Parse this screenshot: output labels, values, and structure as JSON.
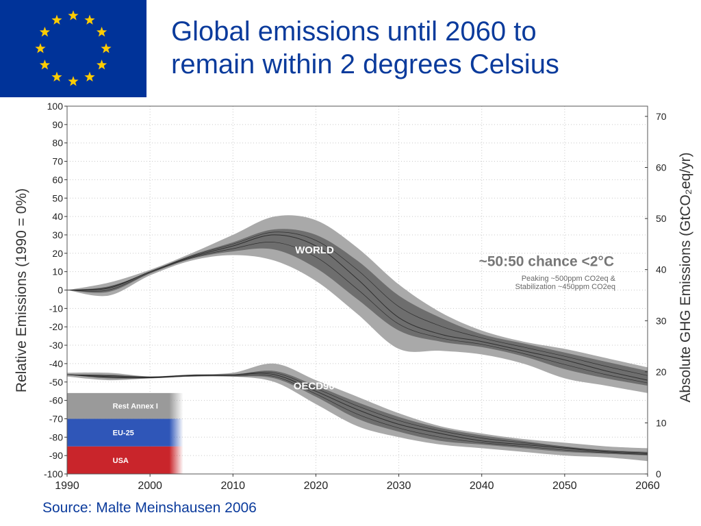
{
  "title_lines": [
    "Global emissions until 2060 to",
    "remain within 2 degrees Celsius"
  ],
  "source": "Source: Malte Meinshausen 2006",
  "flag": {
    "name": "European Union flag",
    "background": "#003399",
    "star_color": "#ffcc00",
    "star_count": 12
  },
  "chart_data": {
    "type": "area",
    "xlabel": "",
    "ylabel": "Relative Emissions (1990 = 0%)",
    "ylabel2": "Absolute GHG Emissions (GtCO₂eq/yr)",
    "xlim": [
      1990,
      2060
    ],
    "ylim": [
      -100,
      100
    ],
    "ylim2": [
      0,
      72
    ],
    "x_ticks": [
      "1990",
      "2000",
      "2010",
      "2020",
      "2030",
      "2040",
      "2050",
      "2060"
    ],
    "y_ticks": [
      "100",
      "90",
      "80",
      "70",
      "60",
      "50",
      "40",
      "30",
      "20",
      "10",
      "0",
      "-10",
      "-20",
      "-30",
      "-40",
      "-50",
      "-60",
      "-70",
      "-80",
      "-90",
      "-100"
    ],
    "y2_ticks": [
      "70",
      "60",
      "50",
      "40",
      "30",
      "20",
      "10",
      "0"
    ],
    "grid": true,
    "colors": {
      "band_outer": "#a9a9a9",
      "band_inner": "#6e6e6e",
      "line": "#2f2f2f",
      "usa": "#c9252b",
      "eu25": "#2f56b8",
      "rest": "#9a9a9a",
      "title": "#0b3b9c"
    },
    "annotations": {
      "world_label": "WORLD",
      "oecd_label": "OECD90+REF",
      "chance": "~50:50 chance <2°C",
      "peaking": "Peaking ~500ppm CO2eq &",
      "stabilization": "Stabilization ~450ppm CO2eq"
    },
    "stacked_bar": {
      "x_range": [
        1990,
        2004
      ],
      "segments": [
        {
          "label": "USA",
          "from": -100,
          "to": -85
        },
        {
          "label": "EU-25",
          "from": -85,
          "to": -70
        },
        {
          "label": "Rest Annex I",
          "from": -70,
          "to": -56
        }
      ]
    },
    "series": [
      {
        "x": [
          1990,
          1995,
          2000,
          2005,
          2010,
          2015,
          2020,
          2025,
          2030,
          2035,
          2040,
          2045,
          2050,
          2055,
          2060
        ],
        "outer_upper": [
          0,
          4,
          11,
          20,
          30,
          40,
          38,
          23,
          3,
          -12,
          -22,
          -28,
          -32,
          -37,
          -42
        ],
        "outer_lower": [
          0,
          -3,
          8,
          16,
          19,
          16,
          5,
          -13,
          -32,
          -33,
          -35,
          -40,
          -48,
          -52,
          -56
        ],
        "inner_upper": [
          0,
          2,
          10,
          19,
          26,
          33,
          30,
          16,
          -3,
          -15,
          -24,
          -29,
          -34,
          -39,
          -44
        ],
        "inner_lower": [
          0,
          -1,
          9,
          17,
          21,
          22,
          12,
          -5,
          -22,
          -28,
          -31,
          -36,
          -43,
          -48,
          -52
        ],
        "median": [
          0,
          1,
          10,
          18,
          24,
          30,
          24,
          6,
          -15,
          -24,
          -28,
          -33,
          -38,
          -44,
          -49
        ]
      },
      {
        "x": [
          1990,
          1995,
          2000,
          2005,
          2010,
          2015,
          2020,
          2025,
          2030,
          2035,
          2040,
          2045,
          2050,
          2055,
          2060
        ],
        "outer_upper": [
          -45,
          -45,
          -47,
          -46,
          -45,
          -40,
          -49,
          -58,
          -67,
          -74,
          -78,
          -81,
          -83,
          -85,
          -86
        ],
        "outer_lower": [
          -47,
          -49,
          -48,
          -47,
          -47,
          -50,
          -62,
          -74,
          -80,
          -84,
          -86,
          -88,
          -90,
          -91,
          -93
        ],
        "inner_upper": [
          -46,
          -46,
          -47,
          -46,
          -46,
          -44,
          -52,
          -61,
          -69,
          -75,
          -79,
          -82,
          -85,
          -87,
          -88
        ],
        "inner_lower": [
          -46,
          -48,
          -48,
          -47,
          -47,
          -48,
          -58,
          -70,
          -77,
          -82,
          -84,
          -86,
          -88,
          -89,
          -90
        ],
        "median": [
          -46,
          -47,
          -47.5,
          -46.5,
          -46,
          -46,
          -55,
          -65,
          -73,
          -78,
          -82,
          -84,
          -86,
          -88,
          -89
        ]
      }
    ]
  }
}
